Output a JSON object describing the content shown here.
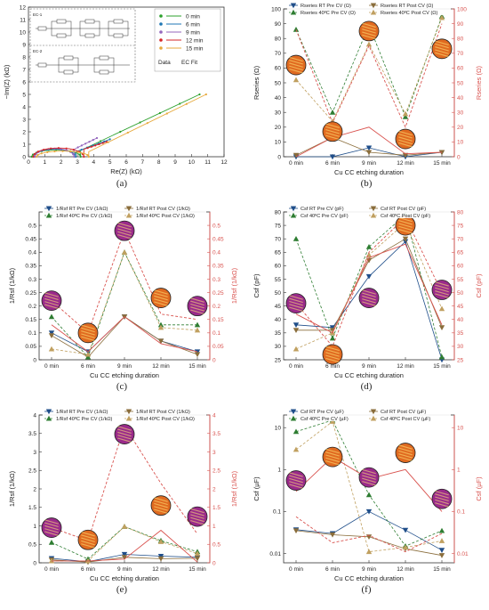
{
  "panels": [
    {
      "id": "a",
      "label": "(a)",
      "kind": "nyquist",
      "xlabel": "Re(Z) (kΩ)",
      "ylabel": "−Im(Z) (kΩ)",
      "xlim": [
        0,
        12
      ],
      "ylim": [
        0,
        12
      ],
      "xticks": [
        0,
        1,
        2,
        3,
        4,
        5,
        6,
        7,
        8,
        9,
        10,
        11,
        12
      ],
      "yticks": [
        0,
        1,
        2,
        3,
        4,
        5,
        6,
        7,
        8,
        9,
        10,
        11,
        12
      ],
      "legend": {
        "items": [
          "0 min",
          "6 min",
          "9 min",
          "12 min",
          "15 min"
        ],
        "data_label": "Data",
        "fit_label": "EC Fit"
      },
      "inset_labels": [
        "EC-1",
        "EC-2"
      ],
      "colors": [
        "#2ca02c",
        "#1f77b4",
        "#9467bd",
        "#d62728",
        "#e7a93d"
      ]
    },
    {
      "id": "b",
      "label": "(b)",
      "kind": "dual",
      "xlabel": "Cu CC etching duration",
      "categories": [
        "0 min",
        "6 min",
        "9 min",
        "12 min",
        "15 min"
      ],
      "ylabel_left": "Rseries (Ω)",
      "ylabel_right": "Rseries (Ω)",
      "ylim": [
        0,
        100
      ],
      "yticks": [
        0,
        10,
        20,
        30,
        40,
        50,
        60,
        70,
        80,
        90,
        100
      ],
      "legend": [
        "Rseries RT Pre CV (Ω)",
        "Rseries RT Post CV (Ω)",
        "Rseries 40ºC Pre CV (Ω)",
        "Rseries 40ºC Post CV (Ω)"
      ],
      "series": [
        {
          "name": "Rseries RT Pre CV (Ω)",
          "values": [
            0,
            0,
            6,
            0,
            3
          ],
          "axis": "left",
          "marker": "tri-down",
          "dashed": false,
          "color": "#1f4e8a"
        },
        {
          "name": "Rseries RT Post CV (Ω)",
          "values": [
            1,
            13,
            3,
            1,
            3
          ],
          "axis": "left",
          "marker": "tri-down",
          "dashed": false,
          "color": "#8a6d3b"
        },
        {
          "name": "Rseries 40ºC Pre CV (Ω)",
          "values": [
            86,
            30,
            89,
            27,
            95
          ],
          "axis": "left",
          "marker": "tri-up",
          "dashed": true,
          "color": "#2e7d32"
        },
        {
          "name": "Rseries 40ºC Post CV (Ω)",
          "values": [
            52,
            24,
            76,
            29,
            94
          ],
          "axis": "left",
          "marker": "tri-up",
          "dashed": true,
          "color": "#c0a060"
        },
        {
          "name": "red",
          "values": [
            0,
            13,
            20,
            2,
            3
          ],
          "axis": "right",
          "marker": "none",
          "dashed": false,
          "color": "#d9534f"
        },
        {
          "name": "red-dash",
          "values": [
            86,
            23,
            75,
            20,
            90
          ],
          "axis": "right",
          "marker": "none",
          "dashed": true,
          "color": "#d9534f"
        }
      ],
      "circles": [
        [
          0,
          62
        ],
        [
          1,
          17
        ],
        [
          2,
          85
        ],
        [
          3,
          12
        ],
        [
          4,
          73
        ]
      ]
    },
    {
      "id": "c",
      "label": "(c)",
      "kind": "dual",
      "xlabel": "Cu CC etching duration",
      "categories": [
        "0 min",
        "6 min",
        "9 min",
        "12 min",
        "15 min"
      ],
      "ylabel_left": "1/Rsf (1/kΩ)",
      "ylabel_right": "1/Rsf (1/kΩ)",
      "ylim": [
        0,
        0.55
      ],
      "yticks": [
        0,
        0.05,
        0.1,
        0.15,
        0.2,
        0.25,
        0.3,
        0.35,
        0.4,
        0.45,
        0.5
      ],
      "legend": [
        "1/Rsf RT Pre CV (1/kΩ)",
        "1/Rsf RT Post CV (1/kΩ)",
        "1/Rsf 40ºC Pre CV (1/kΩ)",
        "1/Rsf 40ºC Post CV (1/kΩ)"
      ],
      "series": [
        {
          "name": "1/Rsf RT Pre CV (1/kΩ)",
          "values": [
            0.1,
            0.03,
            0.16,
            0.07,
            0.03
          ],
          "axis": "left",
          "marker": "tri-down",
          "dashed": false,
          "color": "#1f4e8a"
        },
        {
          "name": "1/Rsf RT Post CV (1/kΩ)",
          "values": [
            0.09,
            0.01,
            0.16,
            0.07,
            0.02
          ],
          "axis": "left",
          "marker": "tri-down",
          "dashed": false,
          "color": "#8a6d3b"
        },
        {
          "name": "1/Rsf 40ºC Pre CV (1/kΩ)",
          "values": [
            0.16,
            0.01,
            0.4,
            0.13,
            0.13
          ],
          "axis": "left",
          "marker": "tri-up",
          "dashed": true,
          "color": "#2e7d32"
        },
        {
          "name": "1/Rsf 40ºC Post CV (1/kΩ)",
          "values": [
            0.04,
            0.02,
            0.4,
            0.12,
            0.11
          ],
          "axis": "left",
          "marker": "tri-up",
          "dashed": true,
          "color": "#c0a060"
        },
        {
          "name": "red",
          "values": [
            0.13,
            0.03,
            0.16,
            0.06,
            0.03
          ],
          "axis": "right",
          "marker": "none",
          "dashed": false,
          "color": "#d9534f"
        },
        {
          "name": "red-dash",
          "values": [
            0.22,
            0.1,
            0.48,
            0.17,
            0.15
          ],
          "axis": "right",
          "marker": "none",
          "dashed": true,
          "color": "#d9534f"
        }
      ],
      "circles": [
        [
          0,
          0.22
        ],
        [
          1,
          0.1
        ],
        [
          2,
          0.48
        ],
        [
          3,
          0.23
        ],
        [
          4,
          0.2
        ]
      ]
    },
    {
      "id": "d",
      "label": "(d)",
      "kind": "dual",
      "xlabel": "Cu CC etching duration",
      "categories": [
        "0 min",
        "6 min",
        "9 min",
        "12 min",
        "15 min"
      ],
      "ylabel_left": "Csf (pF)",
      "ylabel_right": "Csf (pF)",
      "ylim": [
        25,
        80
      ],
      "yticks": [
        25,
        30,
        35,
        40,
        45,
        50,
        55,
        60,
        65,
        70,
        75,
        80
      ],
      "legend": [
        "Csf RT Pre CV (pF)",
        "Csf RT Post CV (pF)",
        "Csf 40ºC Pre CV (pF)",
        "Csf 40ºC Post CV (pF)"
      ],
      "series": [
        {
          "name": "Csf RT Pre CV (pF)",
          "values": [
            38,
            37,
            56,
            69,
            25
          ],
          "axis": "left",
          "marker": "tri-down",
          "dashed": false,
          "color": "#1f4e8a"
        },
        {
          "name": "Csf RT Post CV (pF)",
          "values": [
            36,
            36,
            62,
            70,
            37
          ],
          "axis": "left",
          "marker": "tri-down",
          "dashed": false,
          "color": "#8a6d3b"
        },
        {
          "name": "Csf 40ºC Pre CV (pF)",
          "values": [
            70,
            33,
            67,
            79,
            26
          ],
          "axis": "left",
          "marker": "tri-up",
          "dashed": true,
          "color": "#2e7d32"
        },
        {
          "name": "Csf 40ºC Post CV (pF)",
          "values": [
            29,
            35,
            64,
            76,
            44
          ],
          "axis": "left",
          "marker": "tri-up",
          "dashed": true,
          "color": "#c0a060"
        },
        {
          "name": "red",
          "values": [
            42,
            35,
            63,
            68,
            38
          ],
          "axis": "right",
          "marker": "none",
          "dashed": false,
          "color": "#d9534f"
        },
        {
          "name": "red-dash",
          "values": [
            46,
            30,
            65,
            78,
            50
          ],
          "axis": "right",
          "marker": "none",
          "dashed": true,
          "color": "#d9534f"
        }
      ],
      "circles": [
        [
          0,
          46
        ],
        [
          1,
          27
        ],
        [
          2,
          48
        ],
        [
          3,
          75
        ],
        [
          4,
          51
        ]
      ]
    },
    {
      "id": "e",
      "label": "(e)",
      "kind": "dual",
      "xlabel": "Cu CC etching duration",
      "categories": [
        "0 min",
        "6 min",
        "9 min",
        "12 min",
        "15 min"
      ],
      "ylabel_left": "1/Rsf (1/kΩ)",
      "ylabel_right": "1/Rsf (1/kΩ)",
      "ylim": [
        0,
        4.0
      ],
      "yticks": [
        0,
        0.5,
        1.0,
        1.5,
        2.0,
        2.5,
        3.0,
        3.5,
        4.0
      ],
      "legend": [
        "1/Rsf RT Pre CV (1/kΩ)",
        "1/Rsf RT Post CV (1/kΩ)",
        "1/Rsf 40ºC Pre CV (1/kΩ)",
        "1/Rsf 40ºC Post CV (1/kΩ)"
      ],
      "series": [
        {
          "name": "1/Rsf RT Pre CV (1/kΩ)",
          "values": [
            0.12,
            0.03,
            0.23,
            0.18,
            0.15
          ],
          "axis": "left",
          "marker": "tri-down",
          "dashed": false,
          "color": "#1f4e8a"
        },
        {
          "name": "1/Rsf RT Post CV (1/kΩ)",
          "values": [
            0.08,
            0.02,
            0.15,
            0.11,
            0.12
          ],
          "axis": "left",
          "marker": "tri-down",
          "dashed": false,
          "color": "#8a6d3b"
        },
        {
          "name": "1/Rsf 40ºC Pre CV (1/kΩ)",
          "values": [
            0.55,
            0.1,
            0.98,
            0.6,
            0.3
          ],
          "axis": "left",
          "marker": "tri-up",
          "dashed": true,
          "color": "#2e7d32"
        },
        {
          "name": "1/Rsf 40ºC Post CV (1/kΩ)",
          "values": [
            0.05,
            0.05,
            0.98,
            0.57,
            0.25
          ],
          "axis": "left",
          "marker": "tri-up",
          "dashed": true,
          "color": "#c0a060"
        },
        {
          "name": "red",
          "values": [
            0.05,
            0.05,
            0.1,
            0.88,
            0.02
          ],
          "axis": "right",
          "marker": "none",
          "dashed": false,
          "color": "#d9534f"
        },
        {
          "name": "red-dash",
          "values": [
            0.95,
            0.6,
            3.7,
            2.15,
            0.78
          ],
          "axis": "right",
          "marker": "none",
          "dashed": true,
          "color": "#d9534f"
        }
      ],
      "circles": [
        [
          0,
          0.95
        ],
        [
          1,
          0.62
        ],
        [
          2,
          3.48
        ],
        [
          3,
          1.55
        ],
        [
          4,
          1.25
        ]
      ]
    },
    {
      "id": "f",
      "label": "(f)",
      "kind": "dual-log",
      "xlabel": "Cu CC etching duration",
      "categories": [
        "0 min",
        "6 min",
        "9 min",
        "12 min",
        "15 min"
      ],
      "ylabel_left": "Csf (µF)",
      "ylabel_right": "Csf (µF)",
      "ylim": [
        0.006,
        20
      ],
      "yticks": [
        0.01,
        0.1,
        1,
        10
      ],
      "ytick_labels": [
        "0.01",
        "0.1",
        "1",
        "10"
      ],
      "legend": [
        "Csf RT Pre CV (µF)",
        "Csf RT Post CV (µF)",
        "Csf 40ºC Pre CV (µF)",
        "Csf 40ºC Post CV (µF)"
      ],
      "series": [
        {
          "name": "Csf RT Pre CV (µF)",
          "values": [
            0.037,
            0.03,
            0.1,
            0.036,
            0.012
          ],
          "axis": "left",
          "marker": "tri-down",
          "dashed": false,
          "color": "#1f4e8a"
        },
        {
          "name": "Csf RT Post CV (µF)",
          "values": [
            0.035,
            0.028,
            0.025,
            0.013,
            0.009
          ],
          "axis": "left",
          "marker": "tri-down",
          "dashed": false,
          "color": "#8a6d3b"
        },
        {
          "name": "Csf 40ºC Pre CV (µF)",
          "values": [
            8.0,
            15.0,
            0.25,
            0.015,
            0.035
          ],
          "axis": "left",
          "marker": "tri-up",
          "dashed": true,
          "color": "#2e7d32"
        },
        {
          "name": "Csf 40ºC Post CV (µF)",
          "values": [
            3.0,
            14.0,
            0.011,
            0.014,
            0.02
          ],
          "axis": "left",
          "marker": "tri-up",
          "dashed": true,
          "color": "#c0a060"
        },
        {
          "name": "red",
          "values": [
            0.3,
            2.0,
            0.6,
            1.0,
            0.1
          ],
          "axis": "right",
          "marker": "none",
          "dashed": false,
          "color": "#d9534f"
        },
        {
          "name": "red-dash",
          "values": [
            0.075,
            0.018,
            0.027,
            0.011,
            0.03
          ],
          "axis": "right",
          "marker": "none",
          "dashed": true,
          "color": "#d9534f"
        }
      ],
      "circles": [
        [
          0,
          0.55
        ],
        [
          1,
          2.0
        ],
        [
          2,
          0.65
        ],
        [
          3,
          2.5
        ],
        [
          4,
          0.2
        ]
      ]
    }
  ]
}
